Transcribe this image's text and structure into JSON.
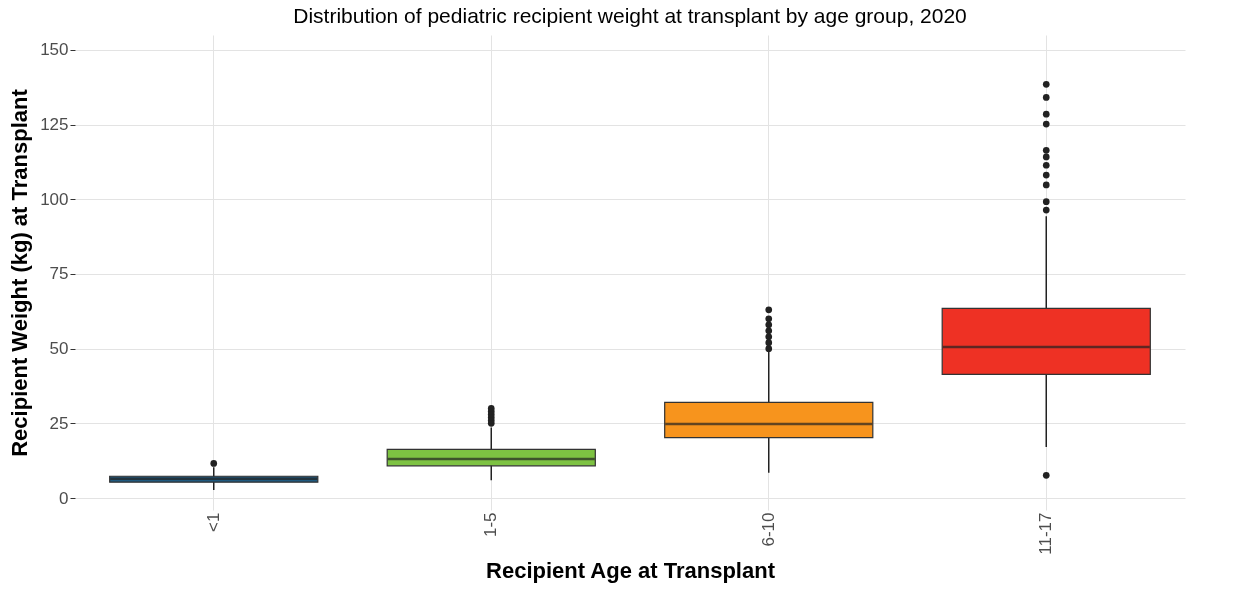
{
  "chart_data": {
    "type": "box",
    "title": "Distribution of pediatric recipient weight at transplant by age group, 2020",
    "xlabel": "Recipient Age at Transplant",
    "ylabel": "Recipient Weight (kg) at Transplant",
    "categories": [
      "<1",
      "1-5",
      "6-10",
      "11-17"
    ],
    "colors": [
      "#1f5a80",
      "#7dc242",
      "#f7941d",
      "#ee3124"
    ],
    "boxes": [
      {
        "low": 2.7,
        "q1": 5.3,
        "median": 6.5,
        "q3": 7.3,
        "high": 10.3,
        "outliers": [
          11.6
        ]
      },
      {
        "low": 6,
        "q1": 10.8,
        "median": 13.1,
        "q3": 16.3,
        "high": 23.6,
        "outliers": [
          25,
          26,
          27,
          28,
          29,
          30
        ]
      },
      {
        "low": 8.5,
        "q1": 20.2,
        "median": 24.8,
        "q3": 32,
        "high": 48.9,
        "outliers": [
          50,
          52,
          54,
          56,
          58,
          60,
          63
        ]
      },
      {
        "low": 17.1,
        "q1": 41.4,
        "median": 50.6,
        "q3": 63.5,
        "high": 94.3,
        "outliers": [
          7.6,
          96.4,
          99.2,
          104.8,
          108.1,
          111.4,
          114.2,
          116.4,
          125.2,
          128.5,
          134.1,
          138.5
        ]
      }
    ],
    "ylim": [
      -4,
      155
    ],
    "yticks": [
      0,
      25,
      50,
      75,
      100,
      125,
      150
    ],
    "grid": true
  }
}
